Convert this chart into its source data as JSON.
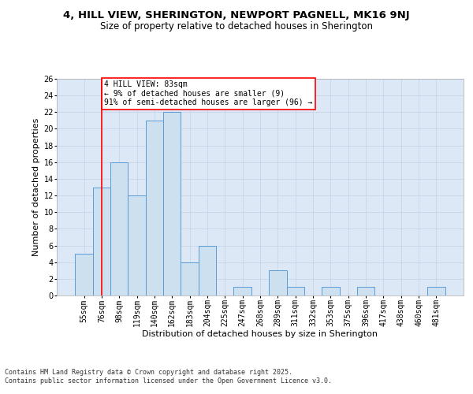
{
  "title_line1": "4, HILL VIEW, SHERINGTON, NEWPORT PAGNELL, MK16 9NJ",
  "title_line2": "Size of property relative to detached houses in Sherington",
  "xlabel": "Distribution of detached houses by size in Sherington",
  "ylabel": "Number of detached properties",
  "categories": [
    "55sqm",
    "76sqm",
    "98sqm",
    "119sqm",
    "140sqm",
    "162sqm",
    "183sqm",
    "204sqm",
    "225sqm",
    "247sqm",
    "268sqm",
    "289sqm",
    "311sqm",
    "332sqm",
    "353sqm",
    "375sqm",
    "396sqm",
    "417sqm",
    "438sqm",
    "460sqm",
    "481sqm"
  ],
  "values": [
    5,
    13,
    16,
    12,
    21,
    22,
    4,
    6,
    0,
    1,
    0,
    3,
    1,
    0,
    1,
    0,
    1,
    0,
    0,
    0,
    1
  ],
  "bar_color": "#cce0f0",
  "bar_edge_color": "#5b9bd5",
  "vline_x": 1,
  "vline_color": "red",
  "annotation_text": "4 HILL VIEW: 83sqm\n← 9% of detached houses are smaller (9)\n91% of semi-detached houses are larger (96) →",
  "annotation_box_color": "white",
  "annotation_box_edge_color": "red",
  "ylim": [
    0,
    26
  ],
  "yticks": [
    0,
    2,
    4,
    6,
    8,
    10,
    12,
    14,
    16,
    18,
    20,
    22,
    24,
    26
  ],
  "grid_color": "#c8d4e8",
  "background_color": "#dce8f5",
  "footer_text": "Contains HM Land Registry data © Crown copyright and database right 2025.\nContains public sector information licensed under the Open Government Licence v3.0.",
  "title_fontsize": 9.5,
  "subtitle_fontsize": 8.5,
  "tick_fontsize": 7,
  "label_fontsize": 8,
  "annotation_fontsize": 7,
  "footer_fontsize": 6
}
